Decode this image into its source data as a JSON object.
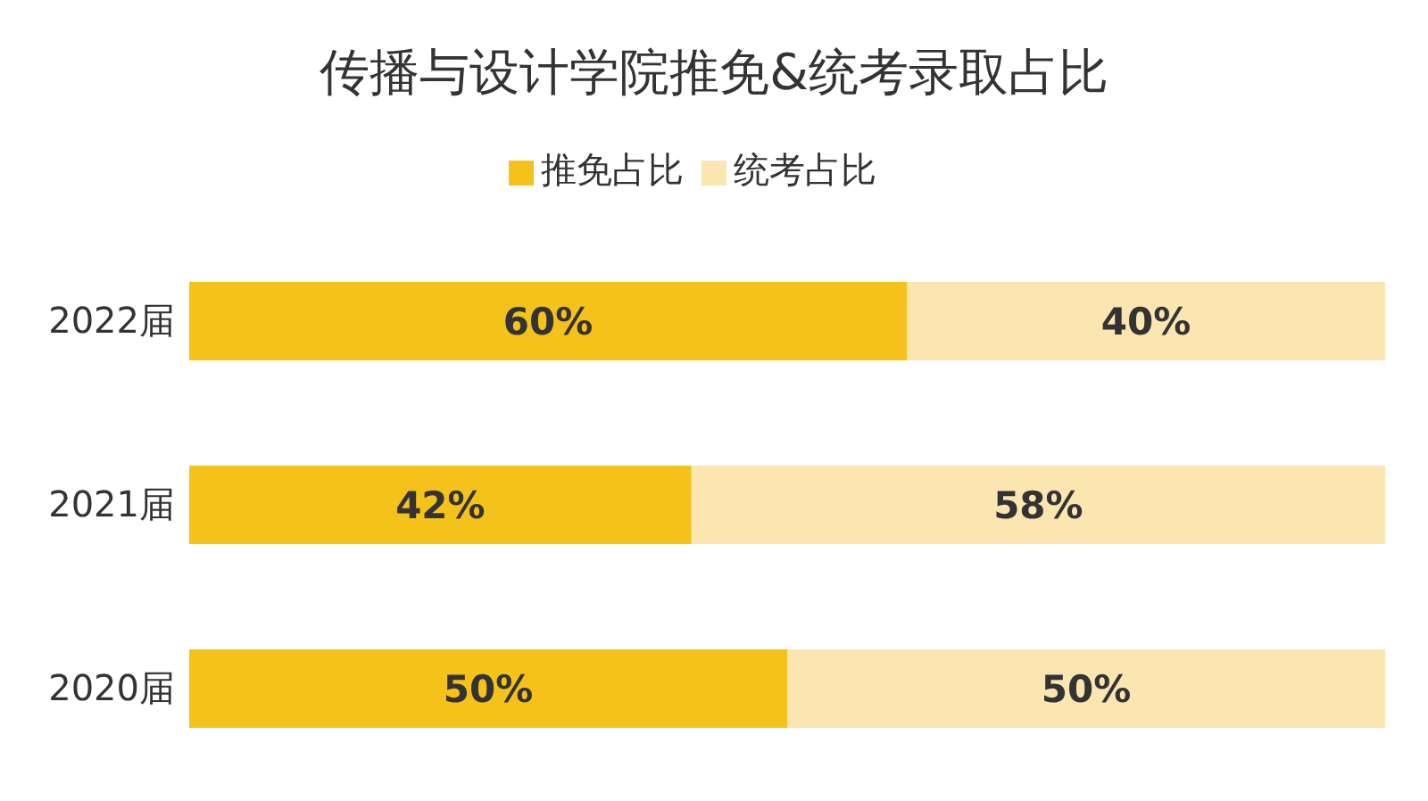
{
  "chart_data": {
    "type": "bar",
    "title": "传播与设计学院推免&统考录取占比",
    "orientation": "horizontal",
    "stacked": true,
    "categories": [
      "2022届",
      "2021届",
      "2020届"
    ],
    "series": [
      {
        "name": "推免占比",
        "color": "#f5c21b",
        "values": [
          60,
          42,
          50
        ],
        "value_labels": [
          "60%",
          "42%",
          "50%"
        ]
      },
      {
        "name": "统考占比",
        "color": "#fbe6b1",
        "values": [
          40,
          58,
          50
        ],
        "value_labels": [
          "40%",
          "58%",
          "50%"
        ]
      }
    ],
    "legend": "top",
    "grid": false
  }
}
